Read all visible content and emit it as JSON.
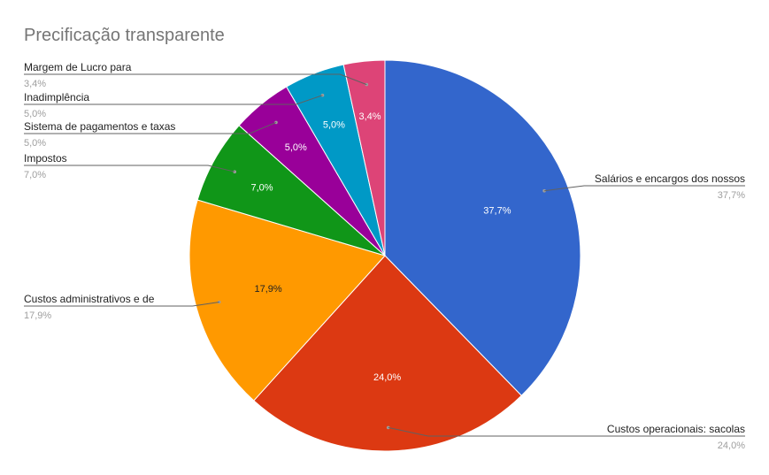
{
  "chart_data": {
    "type": "pie",
    "title": "Precificação transparente",
    "slices": [
      {
        "label": "Salários e encargos dos nossos",
        "value": 37.7,
        "display": "37,7%",
        "color": "#3366cc",
        "text_color": "#ffffff",
        "side": "right"
      },
      {
        "label": "Custos operacionais: sacolas",
        "value": 24.0,
        "display": "24,0%",
        "color": "#dc3912",
        "text_color": "#ffffff",
        "side": "right"
      },
      {
        "label": "Custos administrativos e de",
        "value": 17.9,
        "display": "17,9%",
        "color": "#ff9900",
        "text_color": "#222222",
        "side": "left"
      },
      {
        "label": "Impostos",
        "value": 7.0,
        "display": "7,0%",
        "color": "#109618",
        "text_color": "#ffffff",
        "side": "left"
      },
      {
        "label": "Sistema de pagamentos e taxas",
        "value": 5.0,
        "display": "5,0%",
        "color": "#990099",
        "text_color": "#ffffff",
        "side": "left"
      },
      {
        "label": "Inadimplência",
        "value": 5.0,
        "display": "5,0%",
        "color": "#0099c6",
        "text_color": "#ffffff",
        "side": "left"
      },
      {
        "label": "Margem de Lucro para",
        "value": 3.4,
        "display": "3,4%",
        "color": "#dd4477",
        "text_color": "#ffffff",
        "side": "left"
      }
    ],
    "legend": "labels-with-leader-lines",
    "start_angle": "12 o'clock",
    "direction": "clockwise"
  }
}
